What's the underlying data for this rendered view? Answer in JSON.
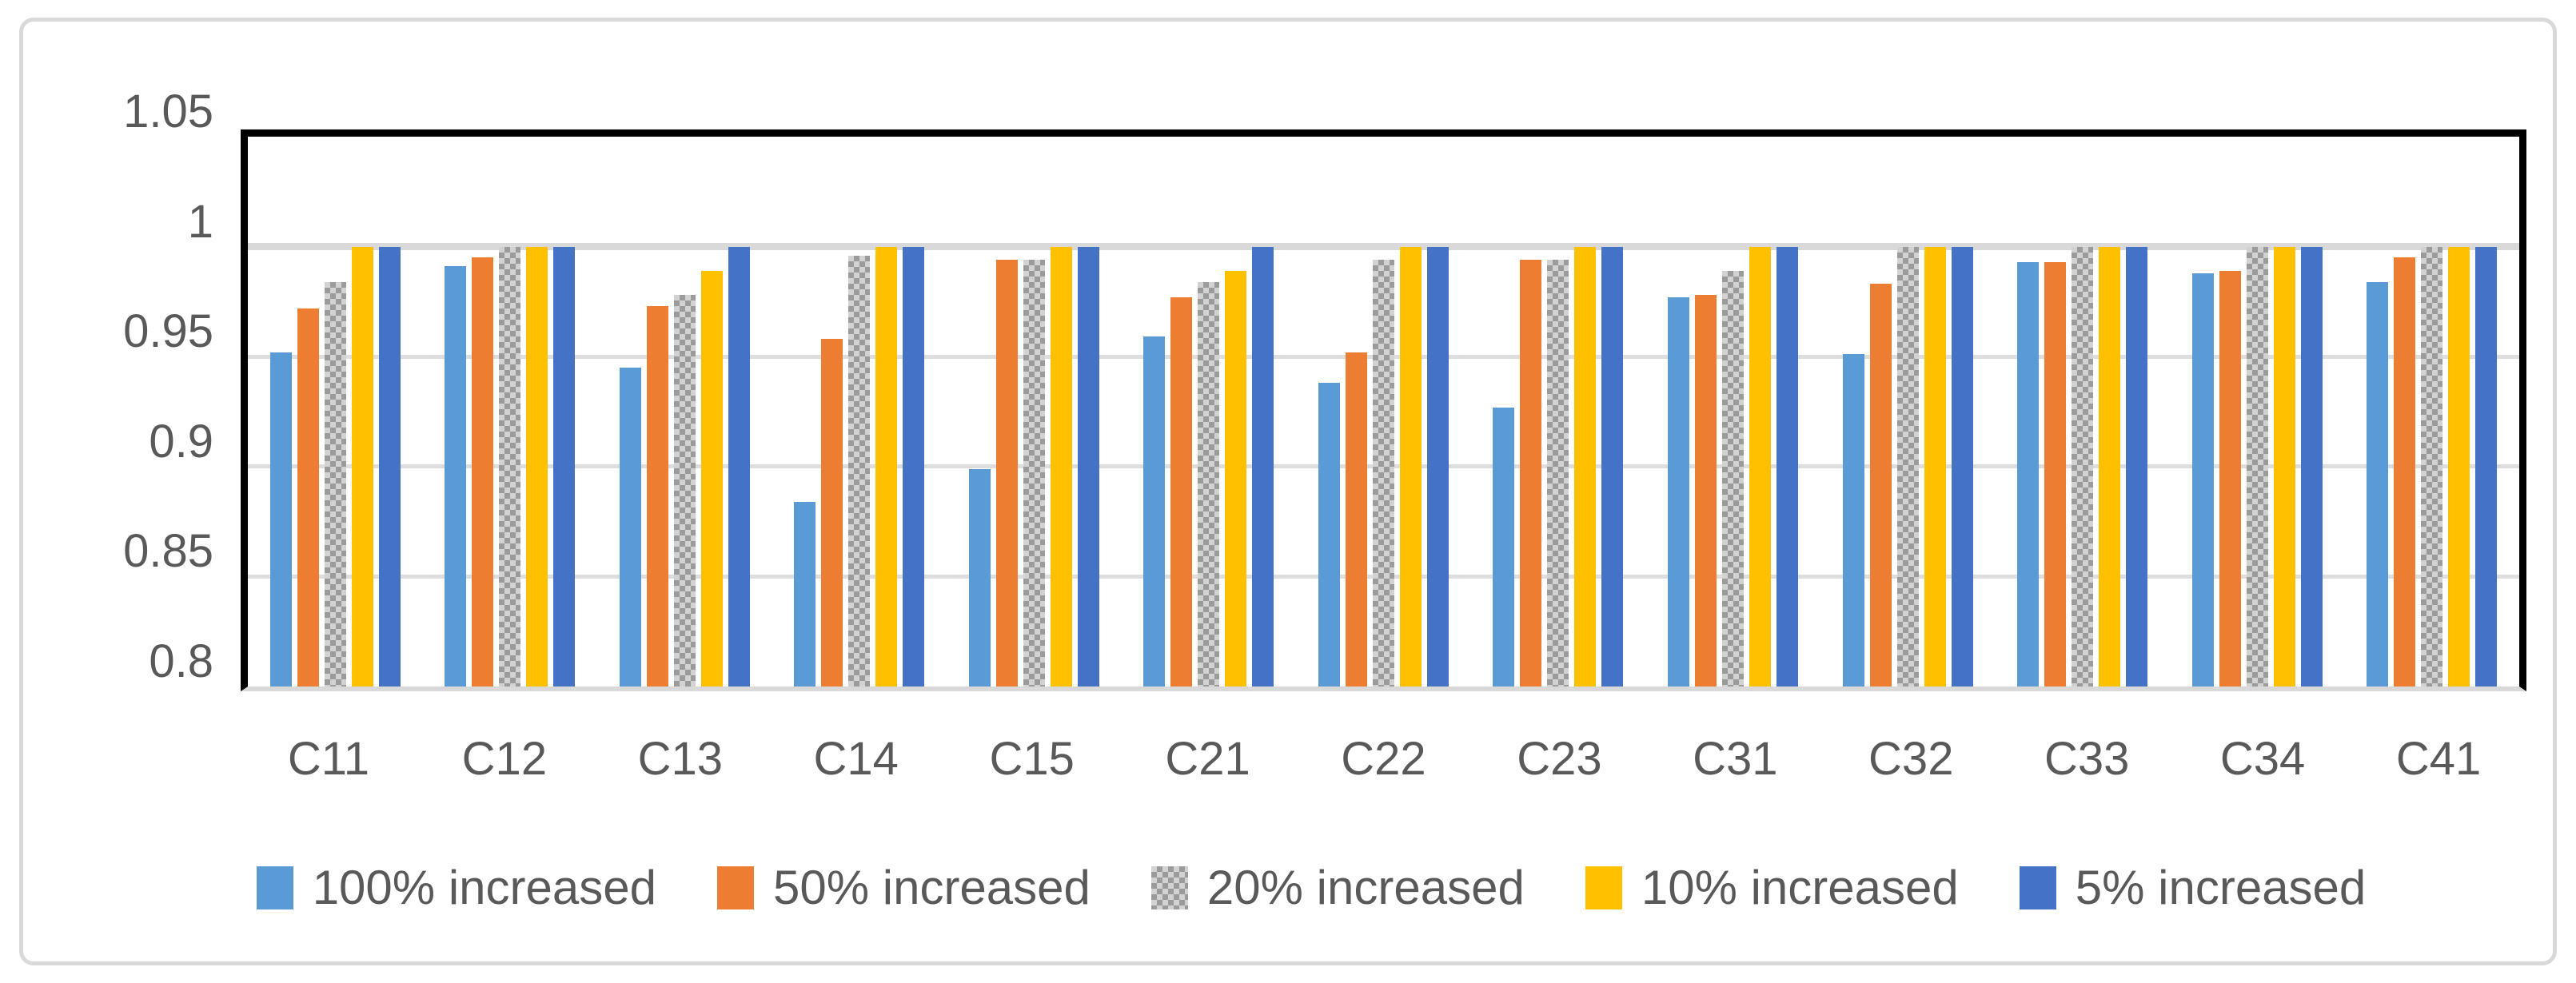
{
  "chart_data": {
    "type": "bar",
    "title": "",
    "xlabel": "",
    "ylabel": "",
    "categories": [
      "C11",
      "C12",
      "C13",
      "C14",
      "C15",
      "C21",
      "C22",
      "C23",
      "C31",
      "C32",
      "C33",
      "C34",
      "C41"
    ],
    "series": [
      {
        "name": "100% increased",
        "color": "#5B9BD5",
        "pattern": "solid",
        "values": [
          0.952,
          0.991,
          0.945,
          0.884,
          0.899,
          0.959,
          0.938,
          0.927,
          0.977,
          0.951,
          0.993,
          0.988,
          0.984
        ]
      },
      {
        "name": "50% increased",
        "color": "#ED7D31",
        "pattern": "solid",
        "values": [
          0.972,
          0.995,
          0.973,
          0.958,
          0.994,
          0.977,
          0.952,
          0.994,
          0.978,
          0.983,
          0.993,
          0.989,
          0.995
        ]
      },
      {
        "name": "20% increased",
        "color": "#A6A6A6",
        "pattern": "checker",
        "values": [
          0.984,
          1.0,
          0.978,
          0.996,
          0.994,
          0.984,
          0.994,
          0.994,
          0.989,
          1.0,
          1.0,
          1.0,
          1.0
        ]
      },
      {
        "name": "10% increased",
        "color": "#FFC000",
        "pattern": "solid",
        "values": [
          1.0,
          1.0,
          0.989,
          1.0,
          1.0,
          0.989,
          1.0,
          1.0,
          1.0,
          1.0,
          1.0,
          1.0,
          1.0
        ]
      },
      {
        "name": "5% increased",
        "color": "#4472C4",
        "pattern": "solid",
        "values": [
          1.0,
          1.0,
          1.0,
          1.0,
          1.0,
          1.0,
          1.0,
          1.0,
          1.0,
          1.0,
          1.0,
          1.0,
          1.0
        ]
      }
    ],
    "ylim": [
      0.8,
      1.05
    ],
    "yticks": [
      1.05,
      1.0,
      0.95,
      0.9,
      0.85,
      0.8
    ],
    "ytick_labels": [
      "1.05",
      "1",
      "0.95",
      "0.9",
      "0.85",
      "0.8"
    ],
    "grid": true,
    "legend_position": "bottom"
  },
  "colors": {
    "axis_text": "#595959",
    "gridline": "#D9D9D9",
    "plot_border": "#000000",
    "frame_border": "#D9D9D9",
    "background": "#FFFFFF"
  }
}
